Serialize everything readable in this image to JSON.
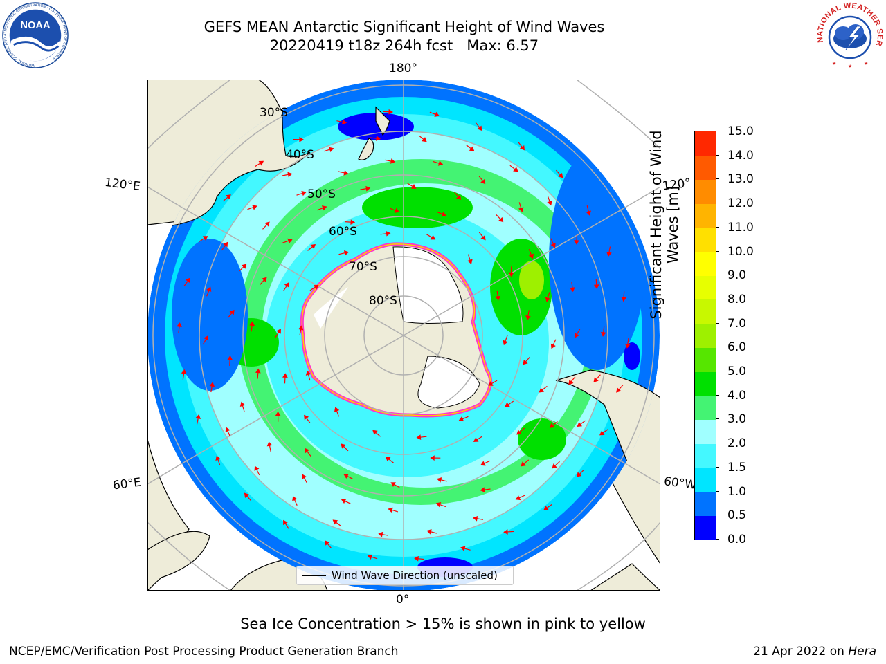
{
  "title": {
    "line1": "GEFS MEAN Antarctic Significant Height of Wind Waves",
    "line2": "20220419 t18z 264h fcst   Max: 6.57"
  },
  "logos": {
    "noaa": "NOAA",
    "noaa_ring_text": "NATIONAL OCEANIC AND ATMOSPHERIC ADMINISTRATION · U.S. DEPARTMENT OF COMMERCE",
    "nws_ring_text": "NATIONAL WEATHER SERVICE"
  },
  "map": {
    "projection": "south-polar-stereographic",
    "longitude_labels": {
      "top": "180°",
      "bottom": "0°",
      "upper_left": "120°E",
      "lower_left": "60°E",
      "upper_right": "120°",
      "lower_right": "60°W"
    },
    "latitude_labels": [
      "30°S",
      "40°S",
      "50°S",
      "60°S",
      "70°S",
      "80°S"
    ],
    "legend": "Wind Wave Direction (unscaled)",
    "arrow_color": "#ff0000",
    "land_color": "#eeecd9",
    "grid_color": "#b0b0b0"
  },
  "colorbar": {
    "label": "Significant Height of Wind Waves [m]",
    "ticks": [
      "15.0",
      "14.0",
      "13.0",
      "12.0",
      "11.0",
      "10.0",
      "9.0",
      "8.0",
      "7.0",
      "6.0",
      "5.0",
      "4.0",
      "3.0",
      "2.0",
      "1.5",
      "1.0",
      "0.5",
      "0.0"
    ],
    "colors": [
      "#0000ff",
      "#0073ff",
      "#00e5ff",
      "#44f8ff",
      "#a0ffff",
      "#44f373",
      "#00e000",
      "#56e600",
      "#9ef000",
      "#c8f800",
      "#e7ff00",
      "#ffff00",
      "#ffe000",
      "#ffb400",
      "#ff8c00",
      "#ff5a00",
      "#ff2800"
    ]
  },
  "sea_ice_note": "Sea Ice Concentration > 15% is shown in pink to yellow",
  "footer": {
    "left": "NCEP/EMC/Verification Post Processing Product Generation Branch",
    "right_date": "21 Apr 2022 on",
    "right_host": "Hera"
  }
}
